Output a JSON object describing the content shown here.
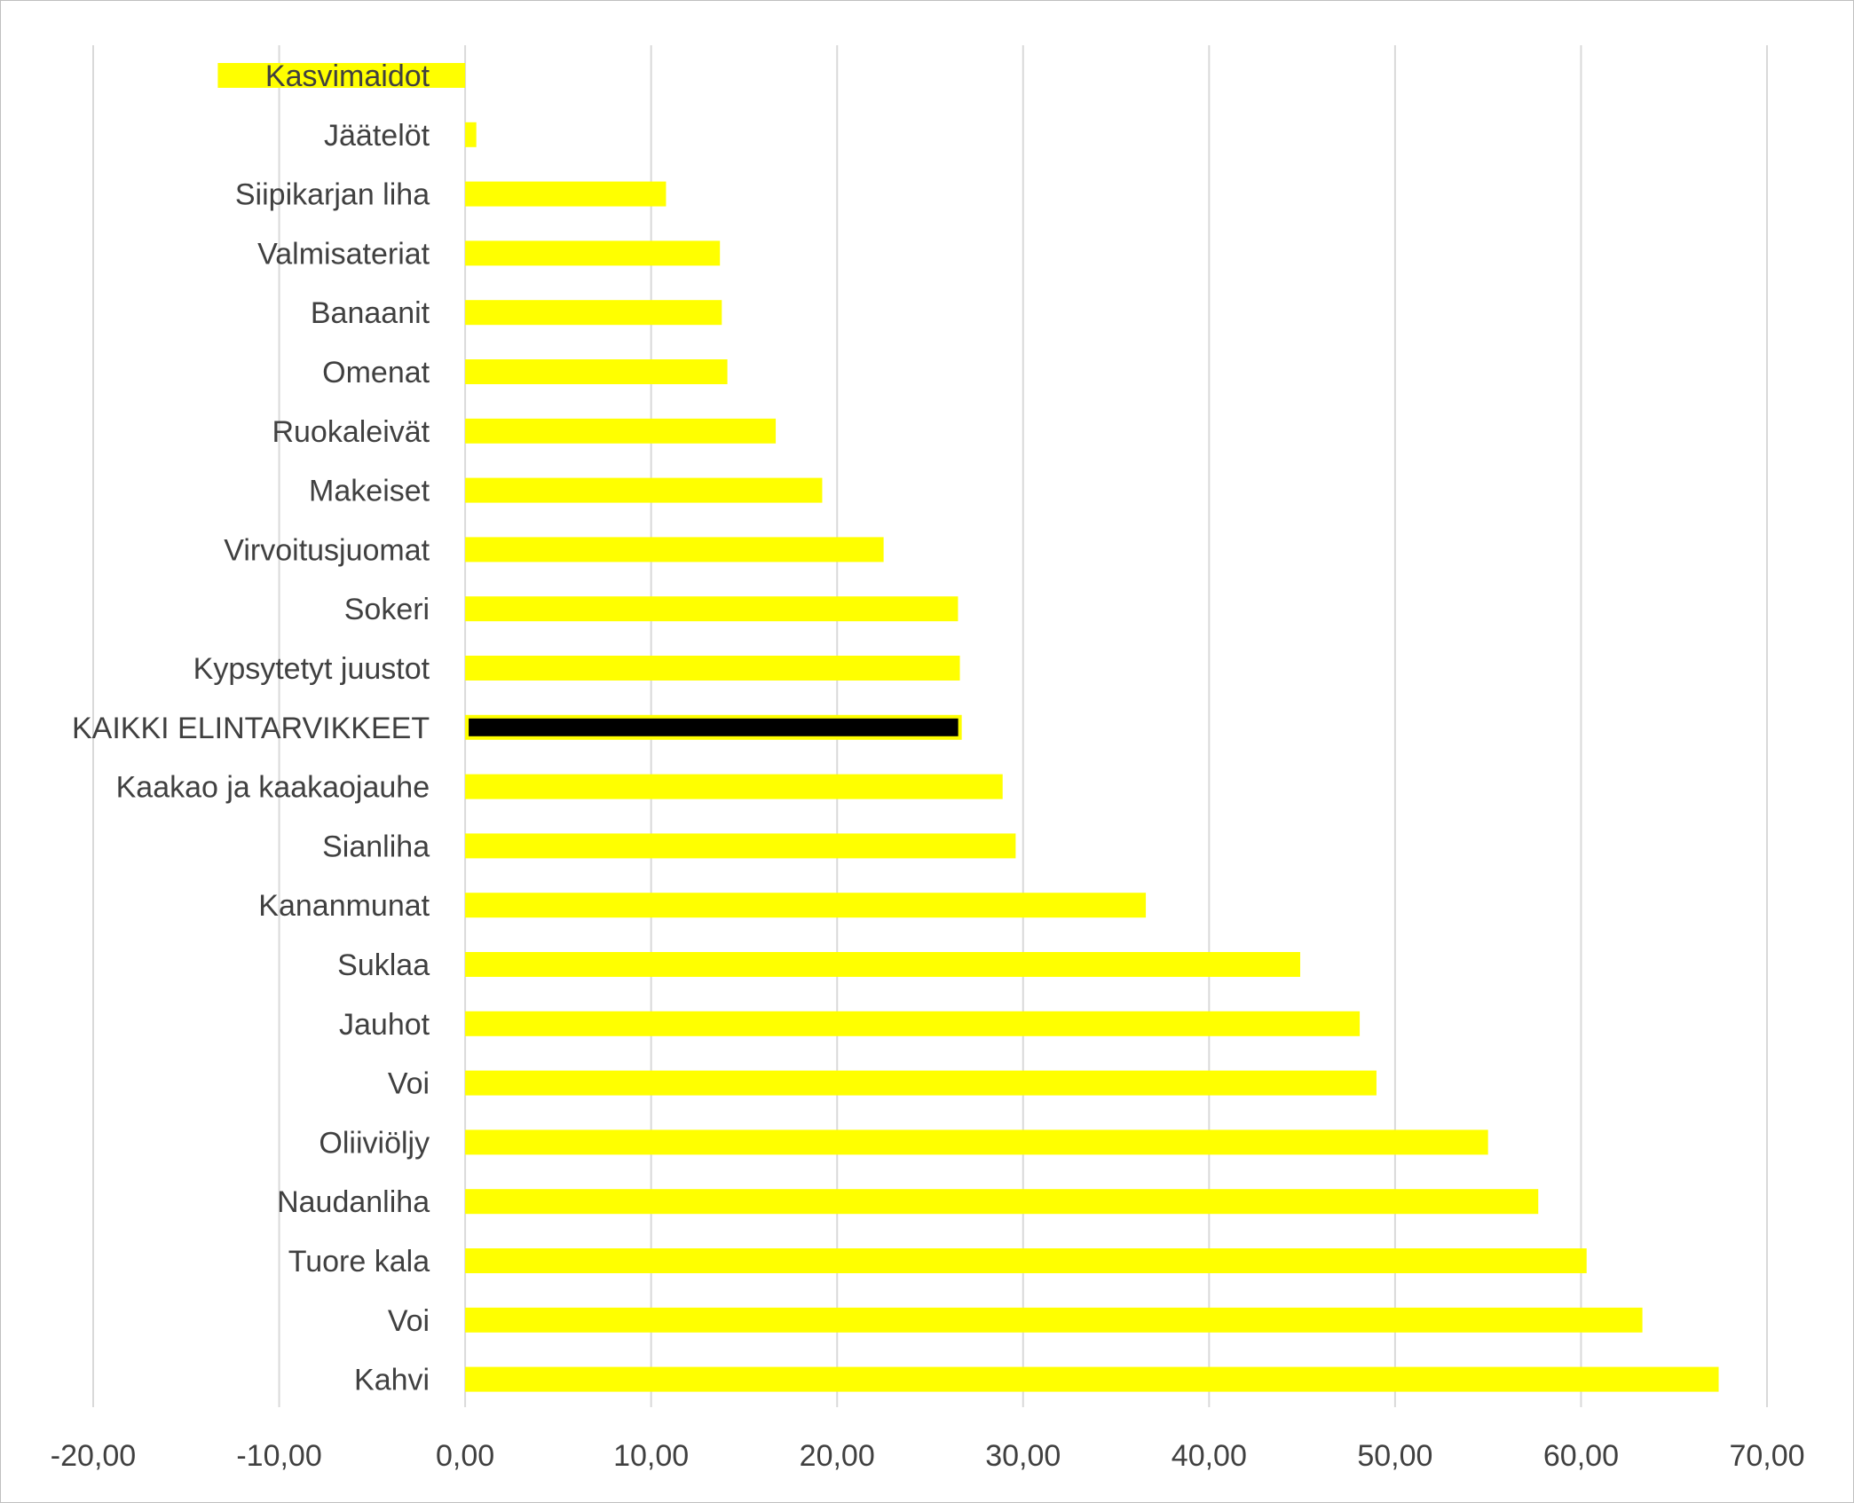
{
  "chart_data": {
    "type": "bar",
    "orientation": "horizontal",
    "title": "",
    "xlabel": "",
    "ylabel": "",
    "xlim": [
      -20,
      70
    ],
    "x_ticks": [
      -20,
      -10,
      0,
      10,
      20,
      30,
      40,
      50,
      60,
      70
    ],
    "tick_labels": [
      "-20,00",
      "-10,00",
      "0,00",
      "10,00",
      "20,00",
      "30,00",
      "40,00",
      "50,00",
      "60,00",
      "70,00"
    ],
    "grid": true,
    "legend": "none",
    "colors": {
      "bar": "#ffff00",
      "highlight": "#000000",
      "grid": "#d9d9d9",
      "text": "#404040"
    },
    "categories": [
      "Kasvimaidot",
      "Jäätelöt",
      "Siipikarjan liha",
      "Valmisateriat",
      "Banaanit",
      "Omenat",
      "Ruokaleivät",
      "Makeiset",
      "Virvoitusjuomat",
      "Sokeri",
      "Kypsytetyt juustot",
      "KAIKKI ELINTARVIKKEET",
      "Kaakao ja kaakaojauhe",
      "Sianliha",
      "Kananmunat",
      "Suklaa",
      "Jauhot",
      "Voi",
      "Oliiviöljy",
      "Naudanliha",
      "Tuore kala",
      "Voi",
      "Kahvi"
    ],
    "values": [
      -13.3,
      0.6,
      10.8,
      13.7,
      13.8,
      14.1,
      16.7,
      19.2,
      22.5,
      26.5,
      26.6,
      26.7,
      28.9,
      29.6,
      36.6,
      44.9,
      48.1,
      49.0,
      55.0,
      57.7,
      60.3,
      63.3,
      67.4
    ],
    "highlight_category": "KAIKKI ELINTARVIKKEET"
  }
}
